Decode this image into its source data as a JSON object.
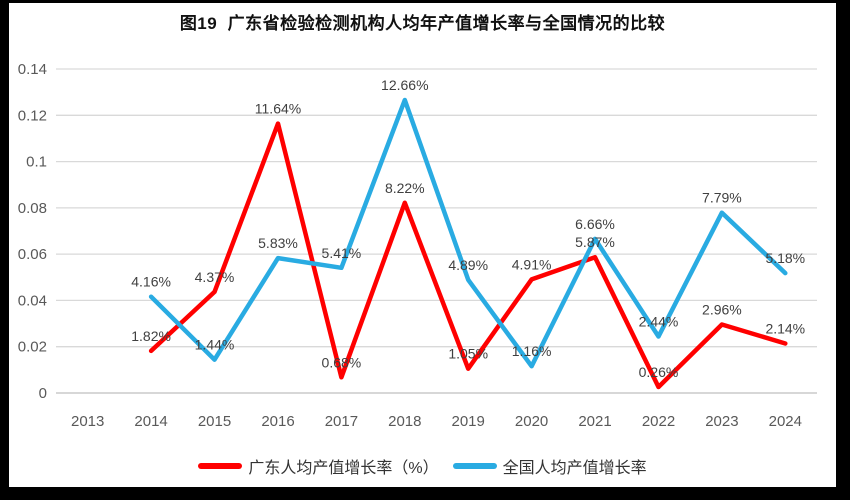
{
  "title": "图19  广东省检验检测机构人均年产值增长率与全国情况的比较",
  "chart_data": {
    "type": "line",
    "categories": [
      "2013",
      "2014",
      "2015",
      "2016",
      "2017",
      "2018",
      "2019",
      "2020",
      "2021",
      "2022",
      "2023",
      "2024"
    ],
    "series": [
      {
        "id": "guangdong",
        "name": "广东人均产值增长率（%）",
        "color": "#FF0000",
        "values": [
          null,
          0.0182,
          0.0437,
          0.1164,
          0.0068,
          0.0822,
          0.0105,
          0.0491,
          0.0587,
          0.0026,
          0.0296,
          0.0214
        ],
        "labels": [
          null,
          "1.82%",
          "4.37%",
          "11.64%",
          "0.68%",
          "8.22%",
          "1.05%",
          "4.91%",
          "5.87%",
          "0.26%",
          "2.96%",
          "2.14%"
        ]
      },
      {
        "id": "national",
        "name": "全国人均产值增长率",
        "color": "#29ABE2",
        "values": [
          null,
          0.0416,
          0.0144,
          0.0583,
          0.0541,
          0.1266,
          0.0489,
          0.0116,
          0.0666,
          0.0244,
          0.0779,
          0.0518
        ],
        "labels": [
          null,
          "4.16%",
          "1.44%",
          "5.83%",
          "5.41%",
          "12.66%",
          "4.89%",
          "1.16%",
          "6.66%",
          "2.44%",
          "7.79%",
          "5.18%"
        ]
      }
    ],
    "ylim": [
      0,
      0.14
    ],
    "yticks": [
      0,
      0.02,
      0.04,
      0.06,
      0.08,
      0.1,
      0.12,
      0.14
    ],
    "ytick_labels": [
      "0",
      "0.02",
      "0.04",
      "0.06",
      "0.08",
      "0.1",
      "0.12",
      "0.14"
    ],
    "grid": true,
    "legend_position": "bottom",
    "colors": {
      "gridline": "#d9d9d9",
      "baseline": "#bfbfbf",
      "axis_text": "#595959",
      "label_text": "#404040"
    }
  }
}
